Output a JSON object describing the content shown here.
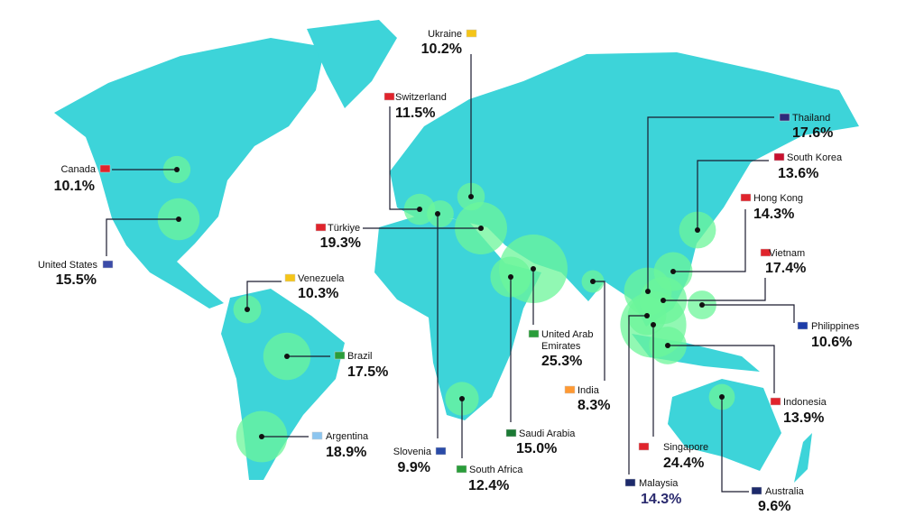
{
  "chart_data": {
    "type": "bubble-map",
    "categories": [
      "Ukraine",
      "Switzerland",
      "Canada",
      "United States",
      "Türkiye",
      "Venezuela",
      "Brazil",
      "Argentina",
      "Slovenia",
      "South Africa",
      "Saudi Arabia",
      "United Arab Emirates",
      "India",
      "Singapore",
      "Malaysia",
      "Thailand",
      "South Korea",
      "Hong Kong",
      "Vietnam",
      "Philippines",
      "Indonesia",
      "Australia"
    ],
    "values": [
      10.2,
      11.5,
      10.1,
      15.5,
      19.3,
      10.3,
      17.5,
      18.9,
      9.9,
      12.4,
      15.0,
      25.3,
      8.3,
      24.4,
      14.3,
      17.6,
      13.6,
      14.3,
      17.4,
      10.6,
      13.9,
      9.6
    ],
    "value_labels": [
      "10.2%",
      "11.5%",
      "10.1%",
      "15.5%",
      "19.3%",
      "10.3%",
      "17.5%",
      "18.9%",
      "9.9%",
      "12.4%",
      "15.0%",
      "25.3%",
      "8.3%",
      "24.4%",
      "14.3%",
      "17.6%",
      "13.6%",
      "14.3%",
      "17.4%",
      "10.6%",
      "13.9%",
      "9.6%"
    ],
    "land_color": "#3dd4d9",
    "bubble_color": "#6cf59a"
  }
}
